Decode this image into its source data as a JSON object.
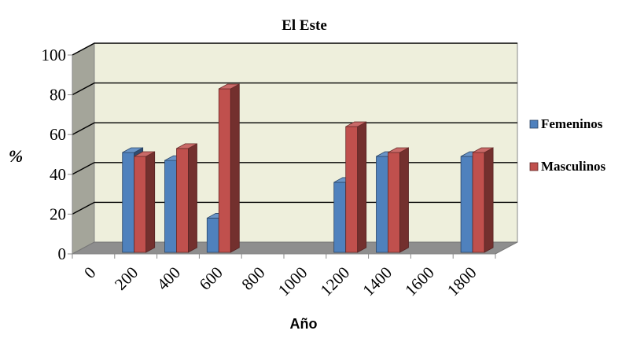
{
  "chart_data": {
    "type": "bar",
    "title": "El Este",
    "xlabel": "Año",
    "ylabel": "%",
    "ylim": [
      0,
      100
    ],
    "yticks": [
      "0",
      "20",
      "40",
      "60",
      "80",
      "100"
    ],
    "categories": [
      "0",
      "200",
      "400",
      "600",
      "800",
      "1000",
      "1200",
      "1400",
      "1600",
      "1800"
    ],
    "series": [
      {
        "name": "Femeninos",
        "color": "#4f81bd",
        "values": [
          null,
          51,
          47,
          18,
          null,
          null,
          36,
          49,
          null,
          49
        ]
      },
      {
        "name": "Masculinos",
        "color": "#c0504d",
        "values": [
          null,
          49,
          53,
          83,
          null,
          null,
          64,
          51,
          null,
          51
        ]
      }
    ],
    "legend_position": "right",
    "grid": true,
    "style": "3d-clustered-column",
    "plot_background": "#eeefdc"
  }
}
